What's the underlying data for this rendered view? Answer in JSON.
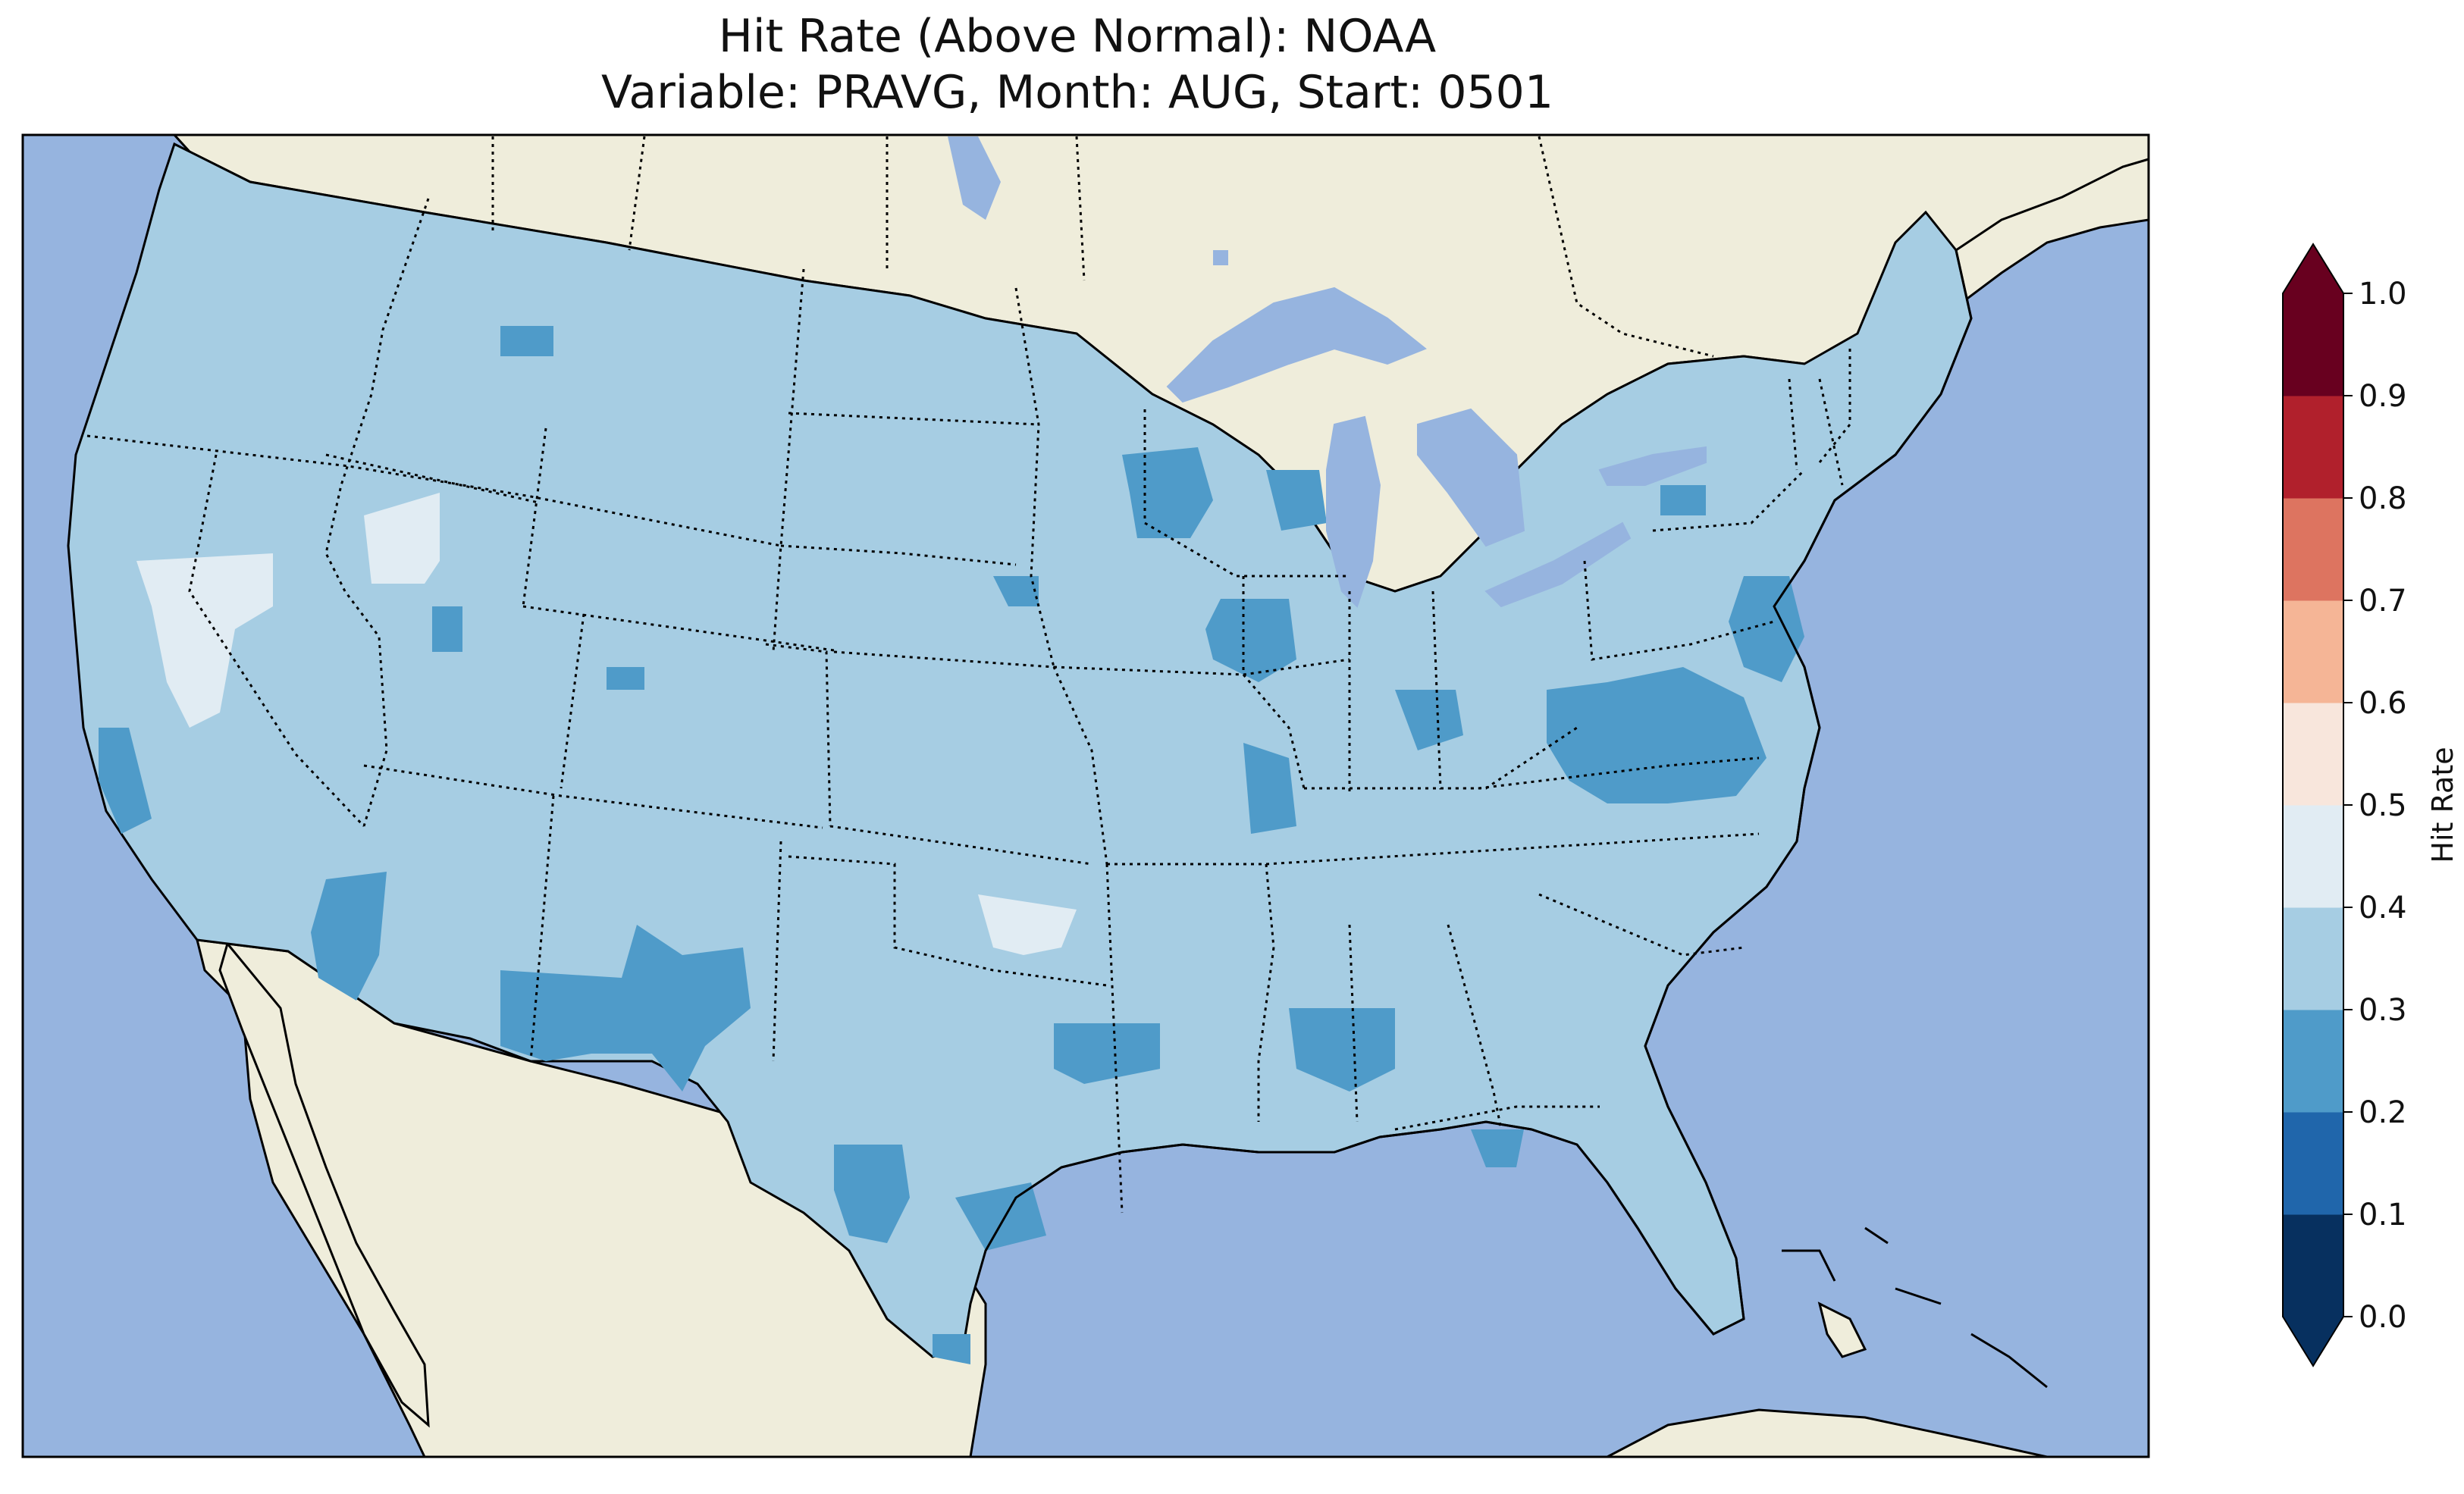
{
  "title_line1": "Hit Rate (Above Normal): NOAA",
  "title_line2": "Variable: PRAVG, Month: AUG, Start: 0501",
  "colors": {
    "ocean": "#96b4df",
    "land": "#efeddb",
    "lake": "#96b4df",
    "base_fill": "#a6cde3",
    "low_patch": "#4f9bc9",
    "high_patch": "#e1ecf3"
  },
  "colorbar": {
    "label": "Hit Rate",
    "ticks": [
      "0.0",
      "0.1",
      "0.2",
      "0.3",
      "0.4",
      "0.5",
      "0.6",
      "0.7",
      "0.8",
      "0.9",
      "1.0"
    ],
    "colors": [
      "#07305f",
      "#2066ab",
      "#4f9bc9",
      "#a6cde3",
      "#e1ecf3",
      "#f8e6dc",
      "#f5b596",
      "#dd7460",
      "#b1202c",
      "#68001f"
    ],
    "extend": "both"
  }
}
